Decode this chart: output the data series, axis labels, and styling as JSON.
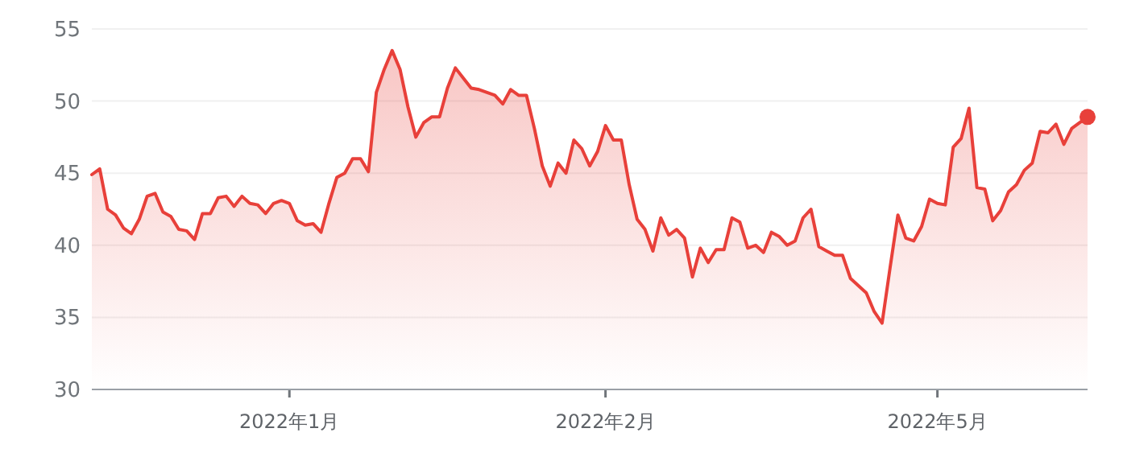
{
  "chart_data": {
    "type": "area",
    "ylim": [
      30,
      55
    ],
    "yticks": [
      30,
      35,
      40,
      45,
      50,
      55
    ],
    "categories": [
      null,
      null,
      null,
      null,
      null,
      null,
      null,
      null,
      null,
      null,
      null,
      null,
      null,
      null,
      null,
      null,
      null,
      null,
      null,
      null,
      null,
      null,
      null,
      null,
      null,
      "2022年1月",
      null,
      null,
      null,
      null,
      null,
      null,
      null,
      null,
      null,
      null,
      null,
      null,
      null,
      null,
      null,
      null,
      null,
      null,
      null,
      null,
      null,
      null,
      null,
      null,
      null,
      null,
      null,
      null,
      null,
      null,
      null,
      null,
      null,
      null,
      null,
      null,
      null,
      null,
      null,
      "2022年2月",
      null,
      null,
      null,
      null,
      null,
      null,
      null,
      null,
      null,
      null,
      null,
      null,
      null,
      null,
      null,
      null,
      null,
      null,
      null,
      null,
      null,
      null,
      null,
      null,
      null,
      null,
      null,
      null,
      null,
      null,
      null,
      null,
      null,
      null,
      null,
      null,
      null,
      null,
      null,
      null,
      null,
      "2022年5月",
      null,
      null,
      null,
      null,
      null,
      null,
      null,
      null,
      null,
      null,
      null,
      null,
      null,
      null,
      null,
      null,
      null,
      null,
      null
    ],
    "grid": "y",
    "series": [
      {
        "color": "#e8403a",
        "values": [
          44.9,
          45.3,
          42.5,
          42.1,
          41.2,
          40.8,
          41.8,
          43.4,
          43.6,
          42.3,
          42.0,
          41.1,
          41.0,
          40.4,
          42.2,
          42.2,
          43.3,
          43.4,
          42.7,
          43.4,
          42.9,
          42.8,
          42.2,
          42.9,
          43.1,
          42.9,
          41.7,
          41.4,
          41.5,
          40.9,
          42.9,
          44.7,
          45.0,
          46.0,
          46.0,
          45.1,
          50.6,
          52.2,
          53.5,
          52.2,
          49.6,
          47.5,
          48.5,
          48.9,
          48.9,
          50.9,
          52.3,
          51.6,
          50.9,
          50.8,
          50.6,
          50.4,
          49.8,
          50.8,
          50.4,
          50.4,
          48.1,
          45.5,
          44.1,
          45.7,
          45.0,
          47.3,
          46.7,
          45.5,
          46.5,
          48.3,
          47.3,
          47.3,
          44.2,
          41.8,
          41.1,
          39.6,
          41.9,
          40.7,
          41.1,
          40.5,
          37.8,
          39.8,
          38.8,
          39.7,
          39.7,
          41.9,
          41.6,
          39.8,
          40.0,
          39.5,
          40.9,
          40.6,
          40.0,
          40.3,
          41.9,
          42.5,
          39.9,
          39.6,
          39.3,
          39.3,
          37.7,
          37.2,
          36.7,
          35.4,
          34.6,
          38.4,
          42.1,
          40.5,
          40.3,
          41.3,
          43.2,
          42.9,
          42.8,
          46.8,
          47.4,
          49.5,
          44.0,
          43.9,
          41.7,
          42.4,
          43.7,
          44.2,
          45.2,
          45.7,
          47.9,
          47.8,
          48.4,
          47.0,
          48.1,
          48.5,
          48.9
        ]
      },
      {
        "type": "scatter",
        "color": "#e8403a",
        "values": [
          null,
          null,
          null,
          null,
          null,
          null,
          null,
          null,
          null,
          null,
          null,
          null,
          null,
          null,
          null,
          null,
          null,
          null,
          null,
          null,
          null,
          null,
          null,
          null,
          null,
          null,
          null,
          null,
          null,
          null,
          null,
          null,
          null,
          null,
          null,
          null,
          null,
          null,
          null,
          null,
          null,
          null,
          null,
          null,
          null,
          null,
          null,
          null,
          null,
          null,
          null,
          null,
          null,
          null,
          null,
          null,
          null,
          null,
          null,
          null,
          null,
          null,
          null,
          null,
          null,
          null,
          null,
          null,
          null,
          null,
          null,
          null,
          null,
          null,
          null,
          null,
          null,
          null,
          null,
          null,
          null,
          null,
          null,
          null,
          null,
          null,
          null,
          null,
          null,
          null,
          null,
          null,
          null,
          null,
          null,
          null,
          null,
          null,
          null,
          null,
          null,
          null,
          null,
          null,
          null,
          null,
          null,
          null,
          null,
          null,
          null,
          null,
          null,
          null,
          null,
          null,
          null,
          null,
          null,
          null,
          null,
          null,
          null,
          null,
          null,
          null,
          48.9
        ]
      }
    ]
  }
}
